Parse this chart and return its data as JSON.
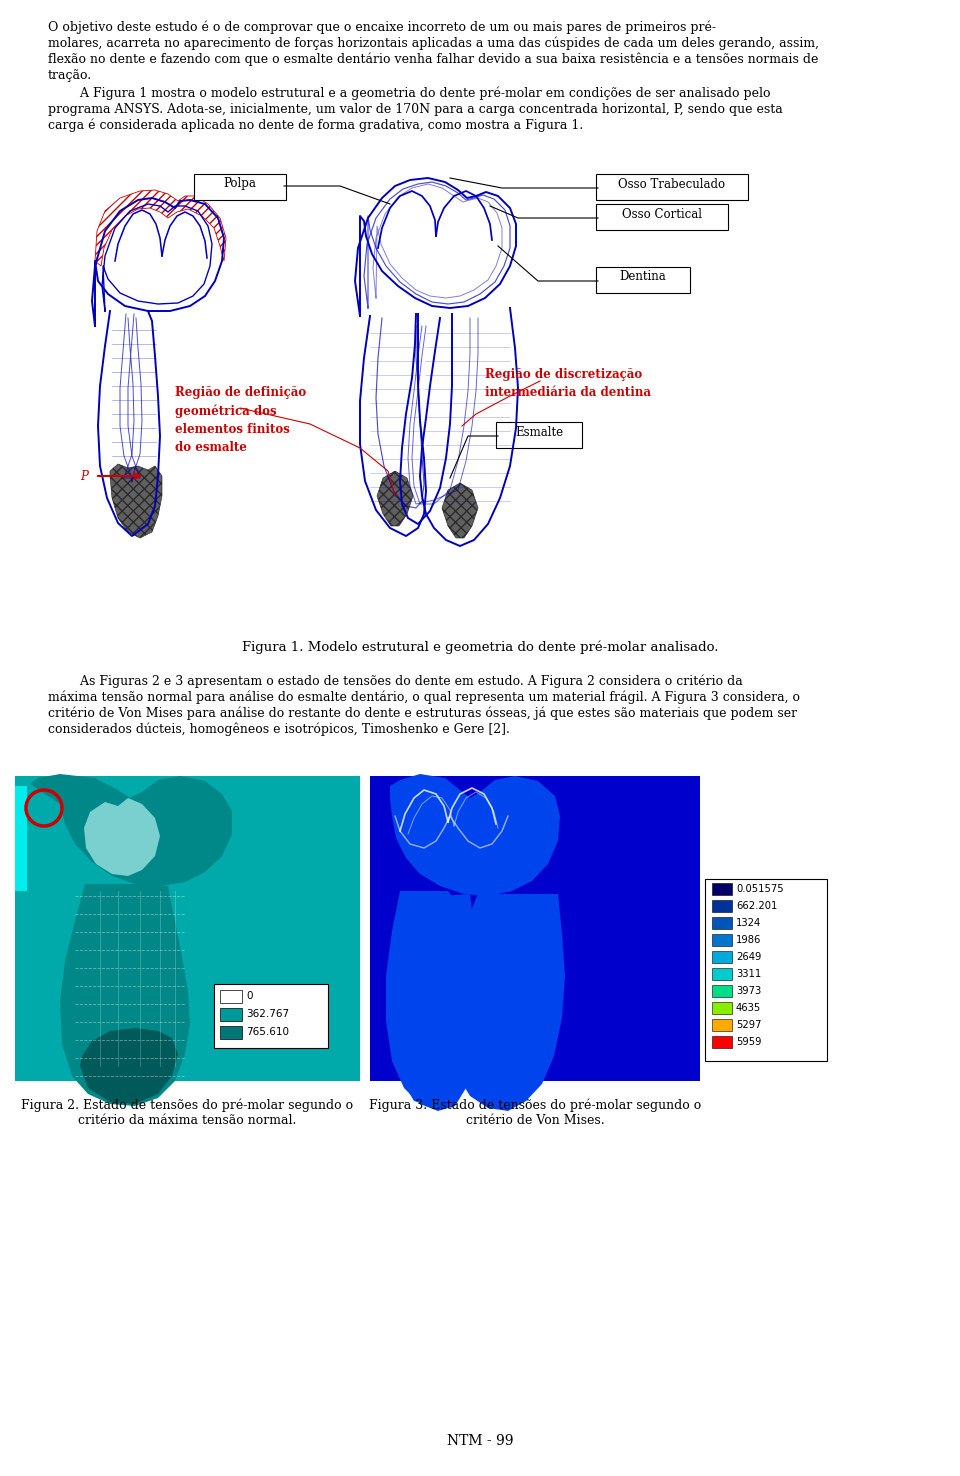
{
  "page_width": 9.6,
  "page_height": 14.76,
  "bg_color": "#ffffff",
  "fig1_caption": "Figura 1. Modelo estrutural e geometria do dente pré-molar analisado.",
  "paragraph3_lines": [
    "        As Figuras 2 e 3 apresentam o estado de tensões do dente em estudo. A Figura 2 considera o critério da",
    "máxima tensão normal para análise do esmalte dentário, o qual representa um material frágil. A Figura 3 considera, o",
    "critério de Von Mises para análise do restante do dente e estruturas ósseas, já que estes são materiais que podem ser",
    "considerados dúcteis, homogêneos e isotrópicos, Timoshenko e Gere [2]."
  ],
  "fig2_caption_line1": "Figura 2. Estado de tensões do pré-molar segundo o",
  "fig2_caption_line2": "critério da máxima tensão normal.",
  "fig3_caption_line1": "Figura 3. Estado de tensões do pré-molar segundo o",
  "fig3_caption_line2": "critério de Von Mises.",
  "footer": "NTM - 99",
  "label_polpa": "Polpa",
  "label_osso_trab": "Osso Trabeculado",
  "label_osso_cort": "Osso Cortical",
  "label_dentina": "Dentina",
  "label_esmalte": "Esmalte",
  "label_regiao_def": "Região de definição\ngeométrica dos\nelementos finitos\ndo esmalte",
  "label_regiao_disc": "Região de discretização\nintermediária da dentina",
  "red_color": "#cc0000",
  "blue_color": "#0000bb",
  "black_color": "#000000",
  "text_color": "#000000",
  "teal_color": "#00aaaa",
  "teal_dark": "#008888",
  "teal_medium": "#00cccc",
  "blue_fig": "#0000dd",
  "para1_lines": [
    "O objetivo deste estudo é o de comprovar que o encaixe incorreto de um ou mais pares de primeiros pré-",
    "molares, acarreta no aparecimento de forças horizontais aplicadas a uma das cúspides de cada um deles gerando, assim,",
    "flexão no dente e fazendo com que o esmalte dentário venha falhar devido a sua baixa resistência e a tensões normais de",
    "tração."
  ],
  "para2_lines": [
    "        A Figura 1 mostra o modelo estrutural e a geometria do dente pré-molar em condições de ser analisado pelo",
    "programa ANSYS. Adota-se, inicialmente, um valor de 170N para a carga concentrada horizontal, P, sendo que esta",
    "carga é considerada aplicada no dente de forma gradativa, como mostra a Figura 1."
  ],
  "leg2_colors": [
    "#ffffff",
    "#009999",
    "#007777"
  ],
  "leg2_vals": [
    "0",
    "362.767",
    "765.610"
  ],
  "leg3_colors": [
    "#000066",
    "#003399",
    "#0055bb",
    "#0077cc",
    "#00aadd",
    "#00cccc",
    "#00dd88",
    "#88ee00",
    "#ffaa00",
    "#ff0000"
  ],
  "leg3_vals": [
    "0.051575",
    "662.201",
    "1324",
    "1986",
    "2649",
    "3311",
    "3973",
    "4635",
    "5297",
    "5959"
  ]
}
